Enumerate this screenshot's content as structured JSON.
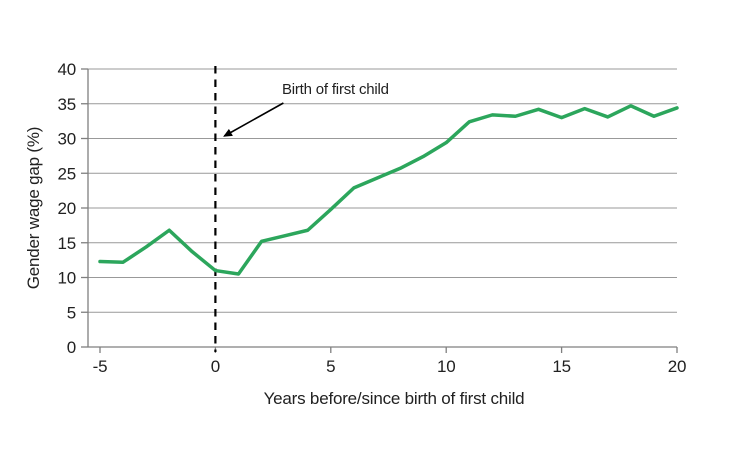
{
  "page": {
    "background": "#ffffff"
  },
  "chart_data": {
    "type": "line",
    "title": "",
    "xlabel": "Years before/since birth of first child",
    "ylabel": "Gender wage gap (%)",
    "annotation": {
      "text": "Birth of first child",
      "line_x": 0
    },
    "x": [
      -5,
      -4,
      -3,
      -2,
      -1,
      0,
      1,
      2,
      3,
      4,
      5,
      6,
      7,
      8,
      9,
      10,
      11,
      12,
      13,
      14,
      15,
      16,
      17,
      18,
      19,
      20
    ],
    "values": [
      12.3,
      12.2,
      14.4,
      16.8,
      13.7,
      11,
      10.5,
      15.2,
      16,
      16.8,
      19.8,
      22.9,
      24.3,
      25.7,
      27.4,
      29.4,
      32.4,
      33.4,
      33.2,
      34.2,
      33,
      34.3,
      33.1,
      34.7,
      33.2,
      34.4
    ],
    "xticks": [
      -5,
      0,
      5,
      10,
      15,
      20
    ],
    "yticks": [
      0,
      5,
      10,
      15,
      20,
      25,
      30,
      35,
      40
    ],
    "xlim": [
      -5.52,
      20
    ],
    "ylim": [
      0,
      40
    ],
    "grid": true,
    "legend": false,
    "colors": {
      "line": "#2ca65c",
      "grid": "#999999",
      "axis": "#7f7f7f",
      "text": "#212121",
      "annotation": "#000000"
    }
  }
}
